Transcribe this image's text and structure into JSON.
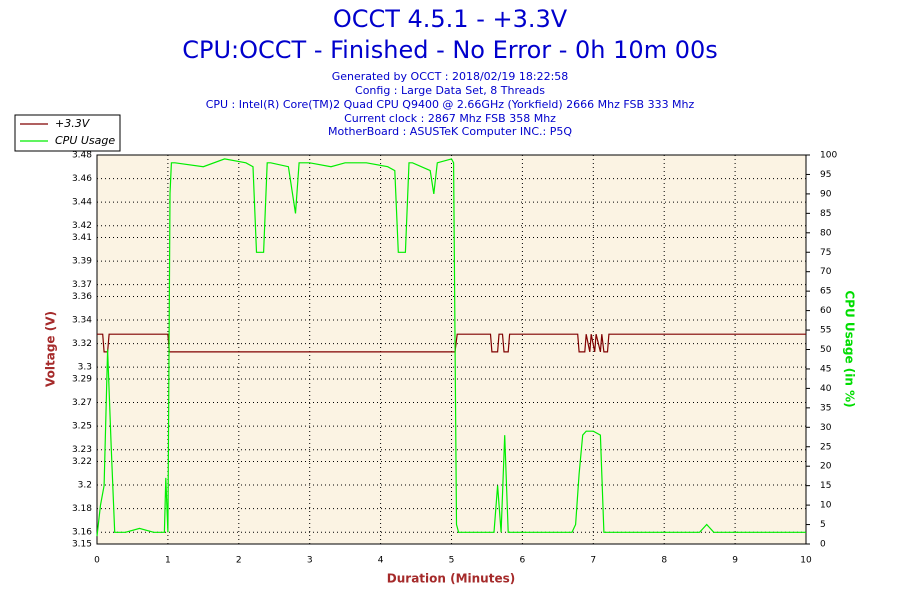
{
  "chart_data": {
    "type": "line",
    "title": "OCCT 4.5.1 - +3.3V",
    "subtitle": "CPU:OCCT - Finished - No Error - 0h 10m 00s",
    "info": [
      "Generated by OCCT : 2018/02/19 18:22:58",
      "Config : Large Data Set, 8 Threads",
      "CPU : Intel(R) Core(TM)2 Quad CPU Q9400 @ 2.66GHz (Yorkfield) 2666 Mhz FSB 333 Mhz",
      "Current clock : 2867 Mhz FSB 358 Mhz",
      "MotherBoard : ASUSTeK Computer INC.: P5Q"
    ],
    "xlabel": "Duration (Minutes)",
    "ylabel": "Voltage (V)",
    "y2label": "CPU Usage (in %)",
    "xlim": [
      0,
      10
    ],
    "xticks": [
      0,
      1,
      2,
      3,
      4,
      5,
      6,
      7,
      8,
      9,
      10
    ],
    "ylim": [
      3.15,
      3.48
    ],
    "yticks": [
      3.15,
      3.16,
      3.18,
      3.2,
      3.22,
      3.23,
      3.25,
      3.27,
      3.29,
      3.3,
      3.32,
      3.34,
      3.36,
      3.37,
      3.39,
      3.41,
      3.42,
      3.44,
      3.46,
      3.48
    ],
    "y2lim": [
      0,
      100
    ],
    "y2ticks": [
      0,
      5,
      10,
      15,
      20,
      25,
      30,
      35,
      40,
      45,
      50,
      55,
      60,
      65,
      70,
      75,
      80,
      85,
      90,
      95,
      100
    ],
    "grid": true,
    "series": [
      {
        "name": "+3.3V",
        "color": "#800000",
        "x": [
          0,
          0.08,
          0.1,
          0.15,
          0.17,
          1.0,
          1.02,
          5.05,
          5.08,
          5.55,
          5.57,
          5.65,
          5.67,
          5.72,
          5.74,
          5.8,
          5.82,
          6.78,
          6.8,
          6.88,
          6.9,
          6.95,
          6.97,
          7.02,
          7.04,
          7.1,
          7.12,
          7.15,
          7.2,
          7.22,
          10
        ],
        "values": [
          3.328,
          3.328,
          3.313,
          3.313,
          3.328,
          3.328,
          3.313,
          3.313,
          3.328,
          3.328,
          3.313,
          3.313,
          3.328,
          3.328,
          3.313,
          3.313,
          3.328,
          3.328,
          3.313,
          3.313,
          3.328,
          3.313,
          3.328,
          3.313,
          3.328,
          3.313,
          3.328,
          3.313,
          3.313,
          3.328,
          3.328
        ]
      },
      {
        "name": "CPU Usage",
        "color": "#00ee00",
        "axis": "y2",
        "x": [
          0,
          0.05,
          0.1,
          0.15,
          0.2,
          0.25,
          0.3,
          0.4,
          0.6,
          0.8,
          0.95,
          0.97,
          1.0,
          1.03,
          1.05,
          1.1,
          1.5,
          1.8,
          2.1,
          2.2,
          2.25,
          2.35,
          2.4,
          2.45,
          2.7,
          2.8,
          2.85,
          3.0,
          3.3,
          3.5,
          3.8,
          4.1,
          4.2,
          4.25,
          4.35,
          4.4,
          4.45,
          4.7,
          4.75,
          4.8,
          5.0,
          5.03,
          5.07,
          5.1,
          5.5,
          5.6,
          5.65,
          5.7,
          5.75,
          5.8,
          6.0,
          6.5,
          6.7,
          6.75,
          6.8,
          6.85,
          6.9,
          7.0,
          7.1,
          7.15,
          7.2,
          7.3,
          8.0,
          8.5,
          8.6,
          8.7,
          9.0,
          9.5,
          10
        ],
        "values": [
          2,
          10,
          15,
          50,
          25,
          3,
          3,
          3,
          4,
          3,
          3,
          17,
          3,
          90,
          98,
          98,
          97,
          99,
          98,
          97,
          75,
          75,
          98,
          98,
          97,
          85,
          98,
          98,
          97,
          98,
          98,
          97,
          96,
          75,
          75,
          98,
          98,
          96,
          90,
          98,
          99,
          98,
          5,
          3,
          3,
          3,
          15,
          3,
          28,
          3,
          3,
          3,
          3,
          5,
          18,
          28,
          29,
          29,
          28,
          3,
          3,
          3,
          3,
          3,
          5,
          3,
          3,
          3,
          3
        ]
      }
    ]
  }
}
